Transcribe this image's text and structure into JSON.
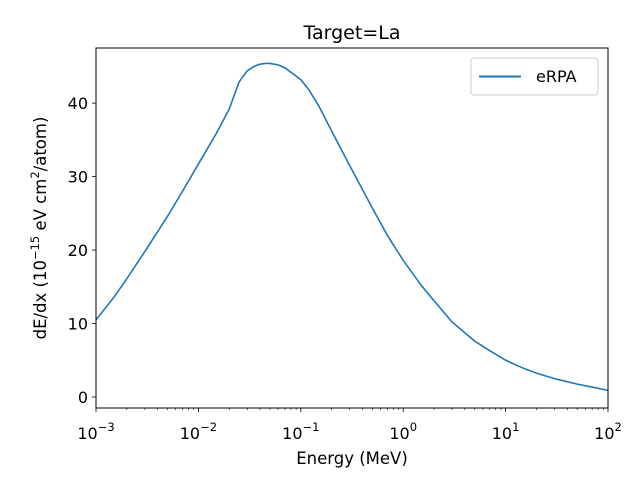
{
  "chart_data": {
    "type": "line",
    "title": "Target=La",
    "xlabel": "Energy (MeV)",
    "ylabel": {
      "prefix": "dE/dx (10",
      "exp": "−15",
      "middle": " eV cm",
      "sup2": "2",
      "suffix": "/atom)"
    },
    "x_scale": "log",
    "xlim": [
      0.001,
      100
    ],
    "ylim": [
      -1.5,
      47.5
    ],
    "x_ticks": [
      {
        "value": 0.001,
        "base": "10",
        "exp": "−3"
      },
      {
        "value": 0.01,
        "base": "10",
        "exp": "−2"
      },
      {
        "value": 0.1,
        "base": "10",
        "exp": "−1"
      },
      {
        "value": 1,
        "base": "10",
        "exp": "0"
      },
      {
        "value": 10,
        "base": "10",
        "exp": "1"
      },
      {
        "value": 100,
        "base": "10",
        "exp": "2"
      }
    ],
    "y_ticks": [
      {
        "value": 0,
        "label": "0"
      },
      {
        "value": 10,
        "label": "10"
      },
      {
        "value": 20,
        "label": "20"
      },
      {
        "value": 30,
        "label": "30"
      },
      {
        "value": 40,
        "label": "40"
      }
    ],
    "grid": false,
    "legend_position": "upper right",
    "series": [
      {
        "name": "eRPA",
        "color": "#1f77b4",
        "x": [
          0.001,
          0.0015,
          0.002,
          0.003,
          0.005,
          0.007,
          0.01,
          0.015,
          0.02,
          0.025,
          0.03,
          0.035,
          0.04,
          0.045,
          0.05,
          0.06,
          0.07,
          0.08,
          0.1,
          0.12,
          0.15,
          0.2,
          0.3,
          0.5,
          0.7,
          1,
          1.5,
          2,
          3,
          5,
          7,
          10,
          15,
          20,
          30,
          50,
          70,
          100
        ],
        "y": [
          10.5,
          13.6,
          16.1,
          19.8,
          24.6,
          28.0,
          31.7,
          35.9,
          39.2,
          42.9,
          44.4,
          45.0,
          45.3,
          45.4,
          45.4,
          45.2,
          44.8,
          44.2,
          43.2,
          41.8,
          39.6,
          36.2,
          31.5,
          25.7,
          22.0,
          18.6,
          15.2,
          13.1,
          10.2,
          7.6,
          6.3,
          5.0,
          3.9,
          3.25,
          2.5,
          1.75,
          1.35,
          0.9
        ]
      }
    ]
  }
}
